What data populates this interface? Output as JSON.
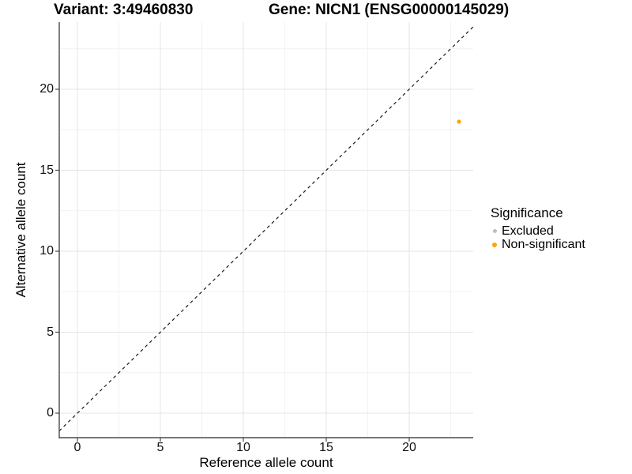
{
  "chart_data": {
    "type": "scatter",
    "titles": {
      "left": "Variant: 3:49460830",
      "right": "Gene: NICN1 (ENSG00000145029)"
    },
    "xlabel": "Reference allele count",
    "ylabel": "Alternative allele count",
    "xlim": [
      -1.1,
      23.9
    ],
    "ylim": [
      -1.55,
      24.2
    ],
    "x_ticks": [
      0,
      5,
      10,
      15,
      20
    ],
    "x_minor_ticks": [
      2.5,
      7.5,
      12.5,
      17.5,
      22.5
    ],
    "y_ticks": [
      0,
      5,
      10,
      15,
      20
    ],
    "y_minor_ticks": [
      2.5,
      7.5,
      12.5,
      17.5,
      22.5
    ],
    "grid": "major+minor",
    "reference_line": {
      "equation": "y = x",
      "style": "dashed",
      "color": "#1a1a1a"
    },
    "legend": {
      "title": "Significance",
      "position": "right",
      "items": [
        {
          "label": "Excluded",
          "color": "#BEBEBE",
          "size": 5
        },
        {
          "label": "Non-significant",
          "color": "#FFA500",
          "size": 6
        }
      ]
    },
    "series": [
      {
        "name": "Excluded",
        "color": "#BEBEBE",
        "points": []
      },
      {
        "name": "Non-significant",
        "color": "#FFA500",
        "points": [
          [
            23,
            18
          ]
        ]
      }
    ],
    "point_radius_px": 2.6
  },
  "style": {
    "background": "#FFFFFF",
    "grid_major_color": "#E4E4E4",
    "grid_minor_color": "#F2F2F2",
    "axis_line_color": "#4A4A4A",
    "tick_color": "#4A4A4A",
    "text_color": "#000000"
  }
}
